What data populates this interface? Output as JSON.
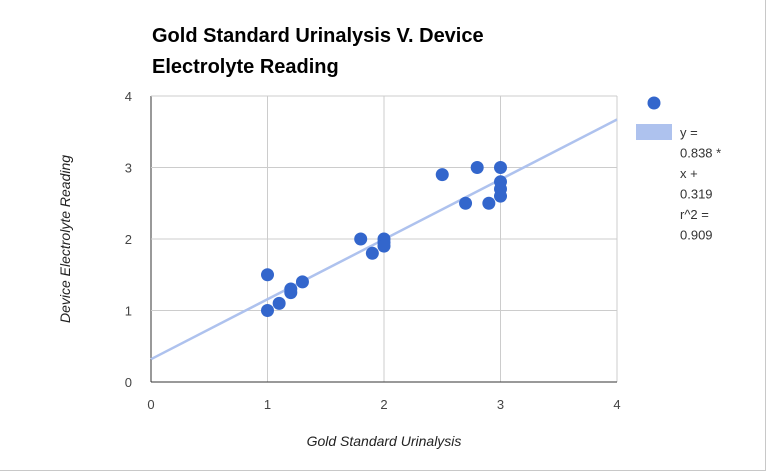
{
  "chart_data": {
    "type": "scatter",
    "title": [
      "Gold Standard Urinalysis V. Device",
      "Electrolyte Reading"
    ],
    "xlabel": "Gold Standard Urinalysis",
    "ylabel": "Device Electrolyte Reading",
    "xlim": [
      0,
      4
    ],
    "ylim": [
      0,
      4
    ],
    "xticks": [
      "0",
      "1",
      "2",
      "3",
      "4"
    ],
    "yticks": [
      "0",
      "1",
      "2",
      "3",
      "4"
    ],
    "grid": true,
    "legend_position": "right",
    "series": [
      {
        "name": "",
        "color": "#3366cc",
        "points": [
          [
            1.0,
            1.5
          ],
          [
            1.0,
            1.0
          ],
          [
            1.1,
            1.1
          ],
          [
            1.2,
            1.3
          ],
          [
            1.2,
            1.25
          ],
          [
            1.3,
            1.4
          ],
          [
            1.8,
            2.0
          ],
          [
            1.9,
            1.8
          ],
          [
            2.0,
            2.0
          ],
          [
            2.0,
            1.95
          ],
          [
            2.0,
            1.9
          ],
          [
            2.5,
            2.9
          ],
          [
            2.7,
            2.5
          ],
          [
            2.8,
            3.0
          ],
          [
            2.9,
            2.5
          ],
          [
            3.0,
            3.0
          ],
          [
            3.0,
            2.8
          ],
          [
            3.0,
            2.7
          ],
          [
            3.0,
            2.6
          ]
        ]
      }
    ],
    "trendline": {
      "slope": 0.838,
      "intercept": 0.319,
      "r2": 0.909,
      "color": "#aec2ee",
      "label_lines": [
        "y =",
        "0.838 *",
        "x +",
        "0.319",
        "r^2 =",
        "0.909"
      ]
    }
  }
}
